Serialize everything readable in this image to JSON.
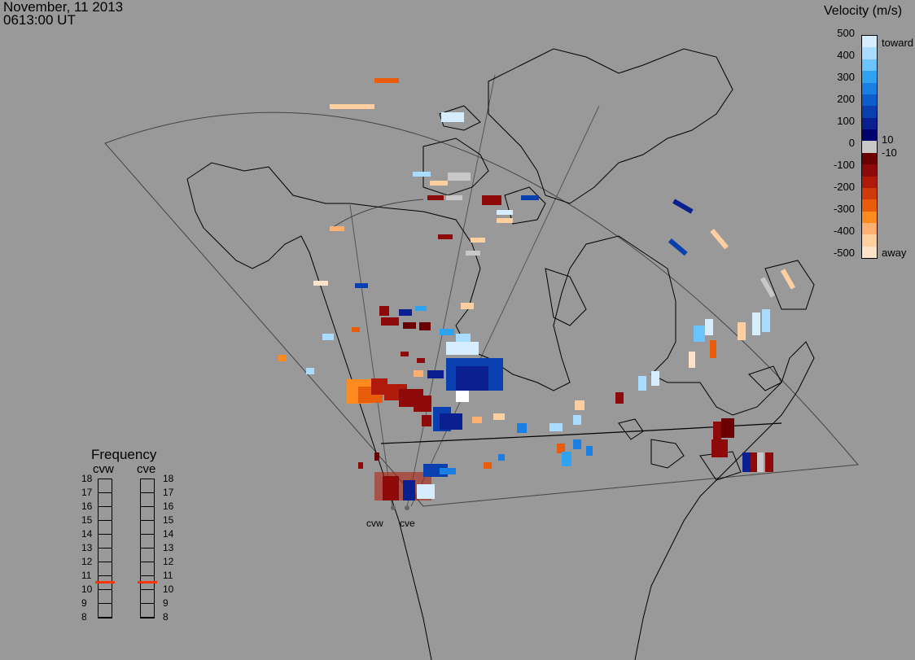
{
  "header": {
    "date": "November, 11 2013",
    "time": "0613:00 UT"
  },
  "colorbar": {
    "title": "Velocity (m/s)",
    "ticks": [
      "500",
      "400",
      "300",
      "200",
      "100",
      "10",
      "0",
      "-10",
      "-100",
      "-200",
      "-300",
      "-400",
      "-500"
    ],
    "toward_label": "toward",
    "away_label": "away",
    "colors": [
      "#d6ecff",
      "#a9dcff",
      "#6cc4ff",
      "#2fa2f2",
      "#1a7ee3",
      "#0b5ecb",
      "#0a3fb0",
      "#0a1f90",
      "#00006e",
      "#c8c8c8",
      "#6b0000",
      "#8e0a0a",
      "#b01a0a",
      "#d03a0a",
      "#e85c0a",
      "#ff8a20",
      "#ffb070",
      "#ffcfa0",
      "#ffe3c8"
    ]
  },
  "frequency": {
    "title": "Frequency",
    "radars": [
      "cvw",
      "cve"
    ],
    "scale": [
      "18",
      "17",
      "16",
      "15",
      "14",
      "13",
      "12",
      "11",
      "10",
      "9",
      "8"
    ],
    "selected_mhz": {
      "cvw": 10.6,
      "cve": 10.6
    },
    "marker_color": "#ff3300"
  },
  "sites": {
    "cvw": "cvw",
    "cve": "cve"
  }
}
